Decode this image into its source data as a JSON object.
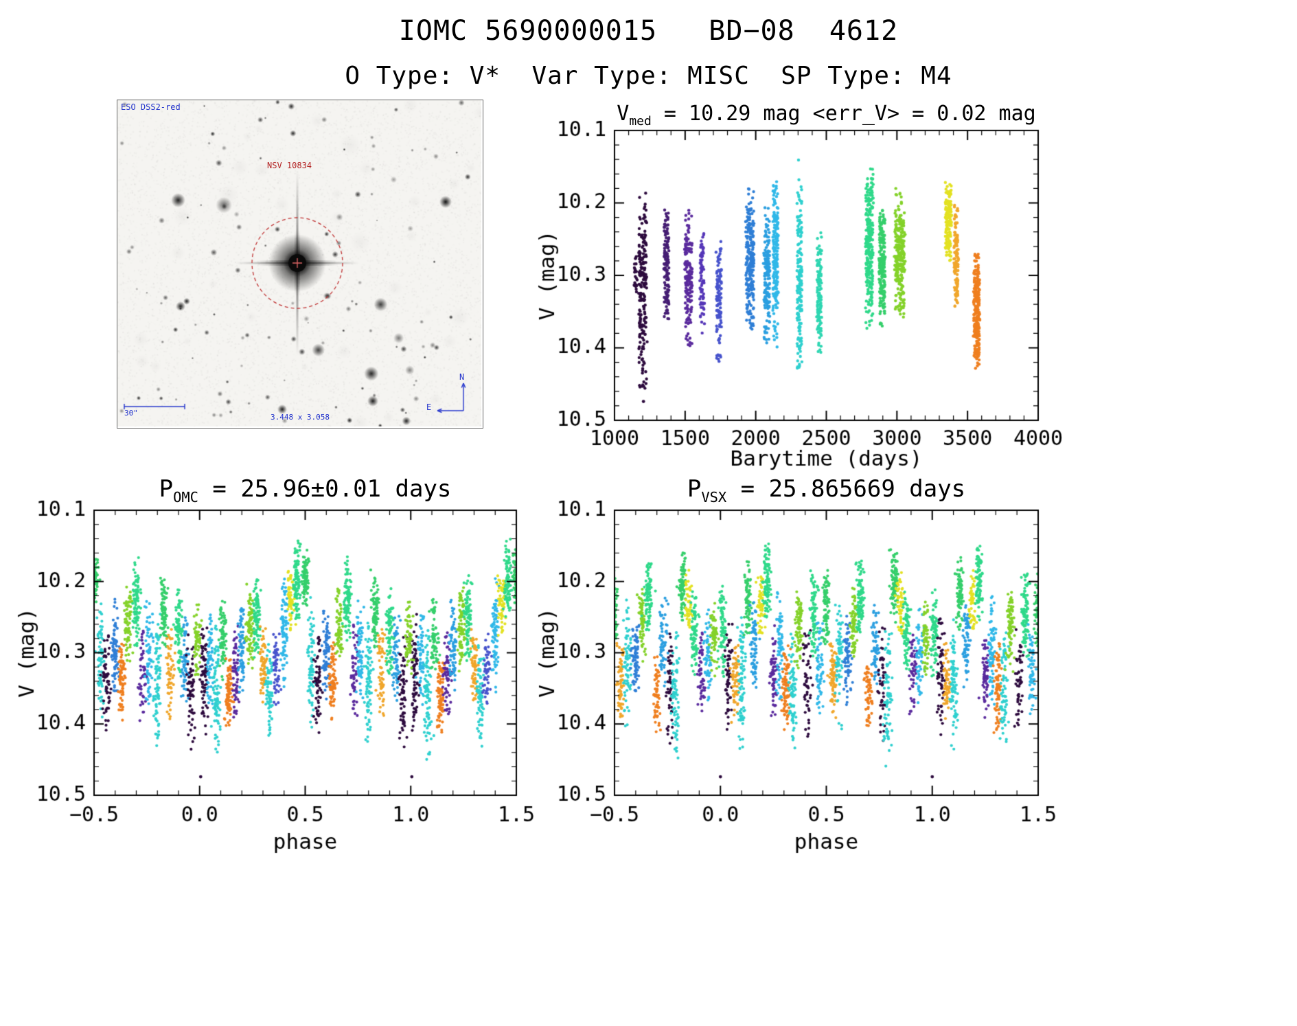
{
  "header": {
    "title": "IOMC 5690000015   BD−08  4612",
    "subtitle": "O Type: V*  Var Type: MISC  SP Type: M4"
  },
  "star_image": {
    "survey_label": "ESO DSS2-red",
    "target_label": "NSV 10834",
    "scale_label": "30\"",
    "size_label": "3.448 x 3.058",
    "compass_n": "N",
    "compass_e": "E"
  },
  "chart_data": [
    {
      "id": "barytime",
      "type": "scatter",
      "title_parts": {
        "pre": "V",
        "sub": "med",
        "post": " = 10.29 mag <err_V> = 0.02 mag"
      },
      "xlabel": "Barytime (days)",
      "ylabel": "V (mag)",
      "xlim": [
        1000,
        4000
      ],
      "ylim": [
        10.5,
        10.1
      ],
      "xticks": [
        1000,
        1500,
        2000,
        2500,
        3000,
        3500,
        4000
      ],
      "yticks": [
        10.1,
        10.2,
        10.3,
        10.4,
        10.5
      ],
      "grid": false,
      "cluster_fields": [
        "x_center_days",
        "x_spread_days",
        "v_center",
        "v_sigma",
        "v_min",
        "v_max",
        "n_points",
        "color"
      ],
      "clusters": [
        [
          1150,
          8,
          10.3,
          0.015,
          10.27,
          10.33,
          25,
          "#2d0b3e"
        ],
        [
          1200,
          22,
          10.33,
          0.07,
          10.18,
          10.47,
          200,
          "#2d0b3e"
        ],
        [
          1368,
          14,
          10.29,
          0.05,
          10.2,
          10.38,
          130,
          "#451d73"
        ],
        [
          1525,
          20,
          10.3,
          0.05,
          10.21,
          10.4,
          150,
          "#5a2a9d"
        ],
        [
          1620,
          12,
          10.3,
          0.04,
          10.24,
          10.38,
          80,
          "#5536b8"
        ],
        [
          1740,
          14,
          10.33,
          0.04,
          10.25,
          10.42,
          110,
          "#4753cc"
        ],
        [
          1960,
          22,
          10.28,
          0.05,
          10.18,
          10.38,
          230,
          "#2f7fd6"
        ],
        [
          2080,
          16,
          10.3,
          0.05,
          10.2,
          10.4,
          150,
          "#2b9fe0"
        ],
        [
          2140,
          14,
          10.27,
          0.06,
          10.16,
          10.4,
          180,
          "#30b8e8"
        ],
        [
          2310,
          14,
          10.3,
          0.08,
          10.13,
          10.46,
          170,
          "#2fd0cf"
        ],
        [
          2450,
          13,
          10.33,
          0.05,
          10.24,
          10.42,
          130,
          "#2fd6b2"
        ],
        [
          2805,
          20,
          10.26,
          0.06,
          10.15,
          10.38,
          260,
          "#2fd98a"
        ],
        [
          2895,
          16,
          10.28,
          0.04,
          10.21,
          10.37,
          200,
          "#35cf6b"
        ],
        [
          3020,
          26,
          10.27,
          0.04,
          10.18,
          10.36,
          260,
          "#84d22a"
        ],
        [
          3365,
          16,
          10.22,
          0.03,
          10.17,
          10.29,
          140,
          "#e3e122"
        ],
        [
          3420,
          12,
          10.27,
          0.04,
          10.2,
          10.35,
          110,
          "#f0a62b"
        ],
        [
          3565,
          16,
          10.35,
          0.04,
          10.27,
          10.43,
          240,
          "#ef7f1f"
        ]
      ],
      "outlier_fields": [
        "x",
        "v",
        "color"
      ],
      "outliers": [
        [
          1205,
          10.474,
          "#2d0b3e"
        ]
      ]
    },
    {
      "id": "omc",
      "type": "scatter",
      "title_parts": {
        "pre": "P",
        "sub": "OMC",
        "post": " = 25.96±0.01 days"
      },
      "xlabel": "phase",
      "ylabel": "V (mag)",
      "xlim": [
        -0.5,
        1.5
      ],
      "ylim": [
        10.5,
        10.1
      ],
      "xticks": [
        -0.5,
        0.0,
        0.5,
        1.0,
        1.5
      ],
      "yticks": [
        10.1,
        10.2,
        10.3,
        10.4,
        10.5
      ],
      "grid": false,
      "folded": true,
      "streak_fields": [
        "phase",
        "color",
        "v_min",
        "v_max",
        "n_points"
      ],
      "streaks": [
        [
          0.02,
          "#2d0b3e",
          10.24,
          10.42,
          70
        ],
        [
          0.05,
          "#30b8e8",
          10.24,
          10.38,
          60
        ],
        [
          0.08,
          "#2fd0cf",
          10.26,
          10.46,
          80
        ],
        [
          0.11,
          "#35cf6b",
          10.22,
          10.34,
          70
        ],
        [
          0.14,
          "#ef7f1f",
          10.3,
          10.42,
          80
        ],
        [
          0.17,
          "#5a2a9d",
          10.26,
          10.4,
          60
        ],
        [
          0.2,
          "#2b9fe0",
          10.22,
          10.36,
          70
        ],
        [
          0.24,
          "#84d22a",
          10.2,
          10.33,
          80
        ],
        [
          0.27,
          "#2fd98a",
          10.18,
          10.32,
          90
        ],
        [
          0.3,
          "#f0a62b",
          10.26,
          10.38,
          60
        ],
        [
          0.33,
          "#2fd0cf",
          10.28,
          10.44,
          70
        ],
        [
          0.36,
          "#4753cc",
          10.26,
          10.38,
          50
        ],
        [
          0.4,
          "#30b8e8",
          10.18,
          10.36,
          80
        ],
        [
          0.43,
          "#e3e122",
          10.18,
          10.28,
          60
        ],
        [
          0.46,
          "#2fd98a",
          10.14,
          10.26,
          90
        ],
        [
          0.5,
          "#35cf6b",
          10.15,
          10.24,
          80
        ],
        [
          0.53,
          "#2fd0cf",
          10.22,
          10.42,
          70
        ],
        [
          0.56,
          "#2d0b3e",
          10.26,
          10.42,
          60
        ],
        [
          0.6,
          "#2f7fd6",
          10.22,
          10.38,
          80
        ],
        [
          0.63,
          "#ef7f1f",
          10.28,
          10.4,
          70
        ],
        [
          0.66,
          "#84d22a",
          10.2,
          10.32,
          70
        ],
        [
          0.7,
          "#2fd98a",
          10.16,
          10.3,
          90
        ],
        [
          0.73,
          "#5a2a9d",
          10.26,
          10.4,
          50
        ],
        [
          0.76,
          "#30b8e8",
          10.22,
          10.38,
          70
        ],
        [
          0.8,
          "#2fd0cf",
          10.24,
          10.44,
          80
        ],
        [
          0.83,
          "#35cf6b",
          10.18,
          10.3,
          80
        ],
        [
          0.86,
          "#f0a62b",
          10.26,
          10.4,
          60
        ],
        [
          0.9,
          "#2fd98a",
          10.2,
          10.34,
          80
        ],
        [
          0.93,
          "#2b9fe0",
          10.24,
          10.38,
          60
        ],
        [
          0.96,
          "#2d0b3e",
          10.26,
          10.44,
          60
        ],
        [
          0.99,
          "#84d22a",
          10.22,
          10.34,
          60
        ]
      ],
      "outlier_fields": [
        "x",
        "v",
        "color"
      ],
      "outliers": [
        [
          0.005,
          10.474,
          "#2d0b3e"
        ]
      ]
    },
    {
      "id": "vsx",
      "type": "scatter",
      "title_parts": {
        "pre": "P",
        "sub": "VSX",
        "post": " = 25.865669 days"
      },
      "xlabel": "phase",
      "ylabel": "V (mag)",
      "xlim": [
        -0.5,
        1.5
      ],
      "ylim": [
        10.5,
        10.1
      ],
      "xticks": [
        -0.5,
        0.0,
        0.5,
        1.0,
        1.5
      ],
      "yticks": [
        10.1,
        10.2,
        10.3,
        10.4,
        10.5
      ],
      "grid": false,
      "folded": true,
      "streak_fields": [
        "phase",
        "color",
        "v_min",
        "v_max",
        "n_points"
      ],
      "streaks": [
        [
          0.01,
          "#2fd98a",
          10.2,
          10.34,
          80
        ],
        [
          0.04,
          "#2d0b3e",
          10.24,
          10.42,
          60
        ],
        [
          0.07,
          "#f0a62b",
          10.28,
          10.4,
          60
        ],
        [
          0.1,
          "#2fd0cf",
          10.24,
          10.44,
          80
        ],
        [
          0.13,
          "#35cf6b",
          10.16,
          10.28,
          80
        ],
        [
          0.16,
          "#2b9fe0",
          10.22,
          10.36,
          70
        ],
        [
          0.19,
          "#e3e122",
          10.18,
          10.28,
          50
        ],
        [
          0.22,
          "#2fd98a",
          10.14,
          10.26,
          90
        ],
        [
          0.25,
          "#5a2a9d",
          10.26,
          10.4,
          60
        ],
        [
          0.28,
          "#30b8e8",
          10.2,
          10.38,
          70
        ],
        [
          0.31,
          "#ef7f1f",
          10.28,
          10.42,
          80
        ],
        [
          0.34,
          "#2fd0cf",
          10.26,
          10.44,
          70
        ],
        [
          0.37,
          "#84d22a",
          10.2,
          10.33,
          80
        ],
        [
          0.41,
          "#2d0b3e",
          10.26,
          10.42,
          50
        ],
        [
          0.44,
          "#2fd98a",
          10.18,
          10.32,
          90
        ],
        [
          0.47,
          "#30b8e8",
          10.24,
          10.4,
          60
        ],
        [
          0.5,
          "#35cf6b",
          10.18,
          10.3,
          80
        ],
        [
          0.53,
          "#f0a62b",
          10.28,
          10.4,
          70
        ],
        [
          0.56,
          "#2fd0cf",
          10.22,
          10.42,
          70
        ],
        [
          0.6,
          "#2f7fd6",
          10.24,
          10.38,
          70
        ],
        [
          0.63,
          "#84d22a",
          10.2,
          10.32,
          70
        ],
        [
          0.66,
          "#2fd98a",
          10.16,
          10.28,
          90
        ],
        [
          0.7,
          "#ef7f1f",
          10.3,
          10.42,
          60
        ],
        [
          0.73,
          "#2b9fe0",
          10.22,
          10.36,
          60
        ],
        [
          0.76,
          "#2d0b3e",
          10.26,
          10.44,
          50
        ],
        [
          0.79,
          "#2fd0cf",
          10.26,
          10.46,
          70
        ],
        [
          0.82,
          "#35cf6b",
          10.15,
          10.26,
          90
        ],
        [
          0.85,
          "#e3e122",
          10.18,
          10.28,
          50
        ],
        [
          0.88,
          "#2fd98a",
          10.2,
          10.34,
          80
        ],
        [
          0.91,
          "#5a2a9d",
          10.26,
          10.4,
          50
        ],
        [
          0.94,
          "#30b8e8",
          10.22,
          10.38,
          60
        ],
        [
          0.97,
          "#84d22a",
          10.22,
          10.34,
          60
        ]
      ],
      "outlier_fields": [
        "x",
        "v",
        "color"
      ],
      "outliers": [
        [
          0.0,
          10.474,
          "#2d0b3e"
        ]
      ]
    }
  ]
}
